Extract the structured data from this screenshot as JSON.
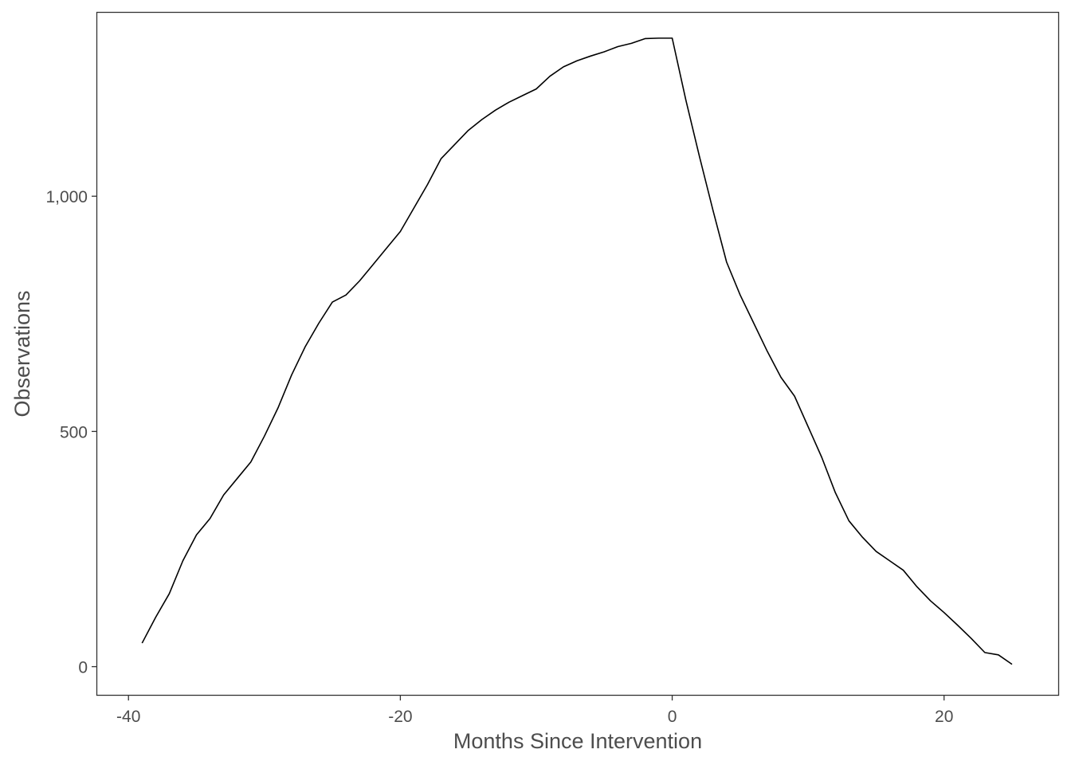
{
  "chart_data": {
    "type": "line",
    "title": "",
    "xlabel": "Months Since Intervention",
    "ylabel": "Observations",
    "xlim": [
      -42.3,
      28.4
    ],
    "ylim": [
      -60,
      1390
    ],
    "x_ticks": [
      -40,
      -20,
      0,
      20
    ],
    "x_tick_labels": [
      "-40",
      "-20",
      "0",
      "20"
    ],
    "y_ticks": [
      0,
      500,
      1000
    ],
    "y_tick_labels": [
      "0",
      "500",
      "1,000"
    ],
    "grid": false,
    "series": [
      {
        "color": "#000000",
        "x": [
          -39,
          -38,
          -37,
          -36,
          -35,
          -34,
          -33,
          -32,
          -31,
          -30,
          -29,
          -28,
          -27,
          -26,
          -25,
          -24,
          -23,
          -22,
          -21,
          -20,
          -19,
          -18,
          -17,
          -16,
          -15,
          -14,
          -13,
          -12,
          -11,
          -10,
          -9,
          -8,
          -7,
          -6,
          -5,
          -4,
          -3,
          -2,
          -1,
          0,
          1,
          2,
          3,
          4,
          5,
          6,
          7,
          8,
          9,
          10,
          11,
          12,
          13,
          14,
          15,
          16,
          17,
          18,
          19,
          20,
          21,
          22,
          23,
          24,
          25
        ],
        "y": [
          50,
          105,
          155,
          225,
          280,
          315,
          365,
          400,
          435,
          490,
          550,
          620,
          680,
          730,
          775,
          790,
          820,
          855,
          890,
          925,
          975,
          1025,
          1080,
          1110,
          1140,
          1163,
          1183,
          1200,
          1214,
          1228,
          1255,
          1275,
          1288,
          1298,
          1307,
          1318,
          1325,
          1335,
          1336,
          1336,
          1205,
          1085,
          970,
          860,
          790,
          730,
          670,
          615,
          575,
          510,
          445,
          370,
          310,
          275,
          245,
          225,
          205,
          170,
          140,
          115,
          88,
          60,
          30,
          25,
          5
        ]
      }
    ]
  }
}
